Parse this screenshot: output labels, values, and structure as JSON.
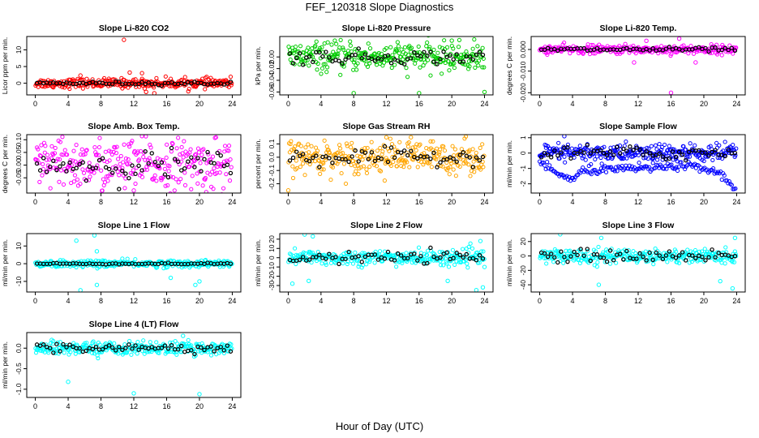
{
  "page": {
    "title": "FEF_120318  Slope Diagnostics",
    "xlabel": "Hour of Day (UTC)"
  },
  "chart_data": [
    {
      "type": "scatter",
      "title": "Slope Li-820 CO2",
      "ylabel": "Licor ppm per min.",
      "xticks": [
        "0",
        "4",
        "8",
        "12",
        "16",
        "20",
        "24"
      ],
      "xlim": [
        0,
        24
      ],
      "ylim": [
        -3.5,
        14
      ],
      "yticks": [
        0,
        5,
        10
      ],
      "yticklabels": [
        "0",
        "5",
        "10"
      ],
      "primary_color": "#ff0000",
      "spread": 0.7,
      "outliers": [
        [
          10.8,
          13
        ],
        [
          13.5,
          -2.6
        ],
        [
          14.5,
          -3
        ],
        [
          11.5,
          3.2
        ],
        [
          5.5,
          2.3
        ],
        [
          13,
          3
        ]
      ],
      "base_curve": [],
      "black_spread": 0.25
    },
    {
      "type": "scatter",
      "title": "Slope Li-820 Pressure",
      "ylabel": "kPa per min.",
      "xticks": [
        "0",
        "4",
        "8",
        "12",
        "16",
        "20",
        "24"
      ],
      "xlim": [
        0,
        24
      ],
      "ylim": [
        -0.065,
        0.035
      ],
      "yticks": [
        0.0,
        -0.02,
        -0.04,
        -0.06
      ],
      "yticklabels": [
        "0.00",
        "-0.02",
        "-0.04",
        "-0.06"
      ],
      "primary_color": "#00cc00",
      "spread": 0.012,
      "outliers": [
        [
          8,
          -0.062
        ],
        [
          16,
          -0.062
        ],
        [
          24,
          -0.06
        ],
        [
          20,
          0.028
        ]
      ],
      "base_curve": [],
      "black_spread": 0.006
    },
    {
      "type": "scatter",
      "title": "Slope Li-820 Temp.",
      "ylabel": "degrees C per min.",
      "xticks": [
        "0",
        "4",
        "8",
        "12",
        "16",
        "20",
        "24"
      ],
      "xlim": [
        0,
        24
      ],
      "ylim": [
        -0.021,
        0.006
      ],
      "yticks": [
        0.0,
        -0.01,
        -0.02
      ],
      "yticklabels": [
        "0.000",
        "-0.010",
        "-0.020"
      ],
      "primary_color": "#ff00ff",
      "spread": 0.001,
      "outliers": [
        [
          16,
          -0.02
        ],
        [
          17,
          0.005
        ],
        [
          11.5,
          -0.006
        ],
        [
          19,
          -0.006
        ],
        [
          13,
          0.004
        ]
      ],
      "base_curve": [],
      "black_spread": 0.0005
    },
    {
      "type": "scatter",
      "title": "Slope Amb. Box Temp.",
      "ylabel": "degrees C per min.",
      "xticks": [
        "0",
        "4",
        "8",
        "12",
        "16",
        "20",
        "24"
      ],
      "xlim": [
        0,
        24
      ],
      "ylim": [
        -0.11,
        0.12
      ],
      "yticks": [
        -0.05,
        0.0,
        0.05,
        0.1
      ],
      "yticklabels": [
        "-0.05",
        "0.00",
        "0.05",
        "0.10"
      ],
      "primary_color": "#ff00ff",
      "spread": 0.05,
      "outliers": [
        [
          12,
          -0.1
        ]
      ],
      "base_curve": [],
      "black_spread": 0.03
    },
    {
      "type": "scatter",
      "title": "Slope Gas Stream RH",
      "ylabel": "percent per min.",
      "xticks": [
        "0",
        "4",
        "8",
        "12",
        "16",
        "20",
        "24"
      ],
      "xlim": [
        0,
        24
      ],
      "ylim": [
        -0.27,
        0.17
      ],
      "yticks": [
        -0.2,
        -0.1,
        0.0,
        0.1
      ],
      "yticklabels": [
        "-0.2",
        "-0.1",
        "0.0",
        "0.1"
      ],
      "primary_color": "#ffa500",
      "spread": 0.06,
      "outliers": [
        [
          0,
          -0.25
        ],
        [
          12,
          0.15
        ],
        [
          15,
          0.15
        ]
      ],
      "base_curve": [],
      "black_spread": 0.03
    },
    {
      "type": "scatter",
      "title": "Slope Sample Flow",
      "ylabel": "ml/min per min.",
      "xticks": [
        "0",
        "4",
        "8",
        "12",
        "16",
        "20",
        "24"
      ],
      "xlim": [
        0,
        24
      ],
      "ylim": [
        -2.6,
        1.2
      ],
      "yticks": [
        -2,
        -1,
        0,
        1
      ],
      "yticklabels": [
        "-2",
        "-1",
        "0",
        "1"
      ],
      "primary_color": "#0000ff",
      "spread": 0.3,
      "outliers": [
        [
          3,
          1.1
        ]
      ],
      "base_curve": [
        [
          0,
          -0.6
        ],
        [
          2,
          -1.3
        ],
        [
          3.5,
          -1.6
        ],
        [
          4,
          -1.8
        ],
        [
          5,
          -1.2
        ],
        [
          8,
          -1.1
        ],
        [
          12,
          -1.0
        ],
        [
          16,
          -0.9
        ],
        [
          18,
          -0.8
        ],
        [
          22,
          -1.3
        ],
        [
          23.5,
          -2.2
        ]
      ],
      "black_spread": 0.25
    },
    {
      "type": "scatter",
      "title": "Slope Line 1 Flow",
      "ylabel": "ml/min per min.",
      "xticks": [
        "0",
        "4",
        "8",
        "12",
        "16",
        "20",
        "24"
      ],
      "xlim": [
        0,
        24
      ],
      "ylim": [
        -16,
        17
      ],
      "yticks": [
        -10,
        0,
        10
      ],
      "yticklabels": [
        "-10",
        "0",
        "10"
      ],
      "primary_color": "#00ffff",
      "spread": 1.0,
      "outliers": [
        [
          5,
          13
        ],
        [
          7.2,
          16
        ],
        [
          7.5,
          7
        ],
        [
          7.5,
          -12
        ],
        [
          5.5,
          -15
        ],
        [
          19.5,
          -12
        ],
        [
          20,
          -10
        ],
        [
          16.5,
          -8
        ]
      ],
      "base_curve": [],
      "black_spread": 0.2
    },
    {
      "type": "scatter",
      "title": "Slope Line 2 Flow",
      "ylabel": "ml/min per min.",
      "xticks": [
        "0",
        "4",
        "8",
        "12",
        "16",
        "20",
        "24"
      ],
      "xlim": [
        0,
        24
      ],
      "ylim": [
        -37,
        26
      ],
      "yticks": [
        -30,
        -20,
        -10,
        0,
        10,
        20
      ],
      "yticklabels": [
        "-30",
        "-20",
        "-10",
        "0",
        "10",
        "20"
      ],
      "primary_color": "#00ffff",
      "spread": 4.0,
      "outliers": [
        [
          2,
          25
        ],
        [
          3,
          23
        ],
        [
          2.5,
          -25
        ],
        [
          0.5,
          -28
        ],
        [
          19.5,
          -25
        ],
        [
          23,
          -35
        ],
        [
          23.8,
          -32
        ],
        [
          23.5,
          18
        ],
        [
          24,
          -10
        ]
      ],
      "base_curve": [],
      "black_spread": 3.0
    },
    {
      "type": "scatter",
      "title": "Slope Line 3 Flow",
      "ylabel": "ml/min per min.",
      "xticks": [
        "0",
        "4",
        "8",
        "12",
        "16",
        "20",
        "24"
      ],
      "xlim": [
        0,
        24
      ],
      "ylim": [
        -50,
        31
      ],
      "yticks": [
        -40,
        -20,
        0,
        20
      ],
      "yticklabels": [
        "-40",
        "-20",
        "0",
        "20"
      ],
      "primary_color": "#00ffff",
      "spread": 5.0,
      "outliers": [
        [
          2.5,
          30
        ],
        [
          7.5,
          25
        ],
        [
          7.2,
          -40
        ],
        [
          23.5,
          -45
        ],
        [
          23.8,
          25
        ],
        [
          22,
          -35
        ]
      ],
      "base_curve": [],
      "black_spread": 4.0
    },
    {
      "type": "scatter",
      "title": "Slope Line 4 (LT) Flow",
      "ylabel": "ml/min per min.",
      "xticks": [
        "0",
        "4",
        "8",
        "12",
        "16",
        "20",
        "24"
      ],
      "xlim": [
        0,
        24
      ],
      "ylim": [
        -1.2,
        0.38
      ],
      "yticks": [
        -1.0,
        -0.5,
        0.0
      ],
      "yticklabels": [
        "-1.0",
        "-0.5",
        "0.0"
      ],
      "primary_color": "#00ffff",
      "spread": 0.08,
      "outliers": [
        [
          4,
          -0.82
        ],
        [
          12,
          -1.1
        ],
        [
          20,
          -1.12
        ],
        [
          18,
          0.3
        ],
        [
          2,
          0.2
        ]
      ],
      "base_curve": [],
      "black_spread": 0.06
    }
  ]
}
